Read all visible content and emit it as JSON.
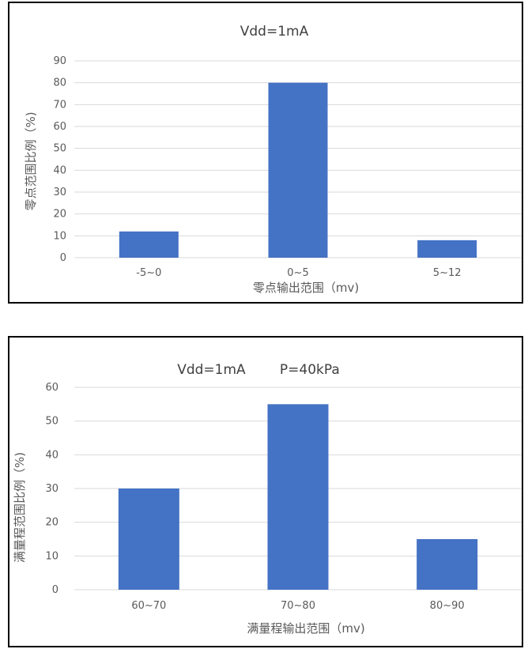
{
  "charts": [
    {
      "title": "Vdd=1mA",
      "chart_data": {
        "type": "bar",
        "title": "Vdd=1mA",
        "categories": [
          "-5~0",
          "0~5",
          "5~12"
        ],
        "values": [
          12,
          80,
          8
        ],
        "xlabel": "零点输出范围（mv)",
        "ylabel": "零点范围比例（%)",
        "ylim": [
          0,
          90
        ],
        "yticks": [
          0,
          10,
          20,
          30,
          40,
          50,
          60,
          70,
          80,
          90
        ],
        "grid": true,
        "color": "#4472c4"
      }
    },
    {
      "title": "Vdd=1mA        P=40kPa",
      "chart_data": {
        "type": "bar",
        "title": "Vdd=1mA        P=40kPa",
        "categories": [
          "60~70",
          "70~80",
          "80~90"
        ],
        "values": [
          30,
          55,
          15
        ],
        "xlabel": "满量程输出范围（mv)",
        "ylabel": "满量程范围比例（%)",
        "ylim": [
          0,
          60
        ],
        "yticks": [
          0,
          10,
          20,
          30,
          40,
          50,
          60
        ],
        "grid": true,
        "color": "#4472c4"
      }
    }
  ]
}
